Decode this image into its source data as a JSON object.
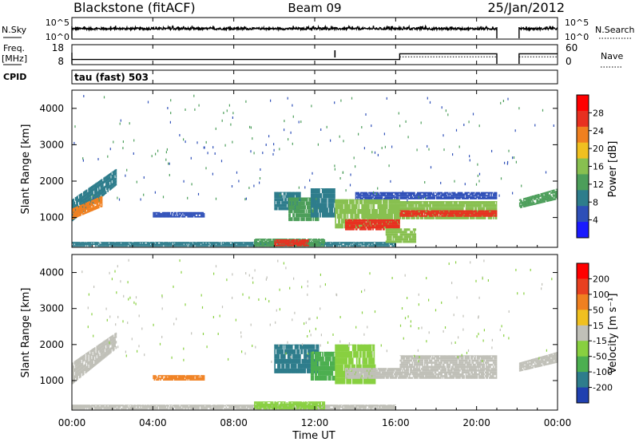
{
  "header": {
    "station": "Blackstone (fitACF)",
    "beam": "Beam 09",
    "date": "25/Jan/2012"
  },
  "noise_panel": {
    "left_label": "N.Sky",
    "right_label": "N.Search",
    "left_ticks": [
      "10^5",
      "10^0"
    ],
    "right_ticks": [
      "10^5",
      "10^0"
    ]
  },
  "freq_panel": {
    "left_label_top": "Freq.",
    "left_label_bottom": "[MHz]",
    "right_label": "Nave",
    "left_ticks": [
      "18",
      "8"
    ],
    "right_ticks": [
      "60",
      "0"
    ]
  },
  "cpid": {
    "label": "CPID",
    "text": "tau (fast) 503"
  },
  "power_panel": {
    "ylabel": "Slant Range [km]",
    "cbar_label": "Power [dB]",
    "y_ticks": [
      "1000",
      "2000",
      "3000",
      "4000"
    ],
    "cbar_ticks": [
      "4",
      "8",
      "12",
      "16",
      "20",
      "24",
      "28"
    ]
  },
  "velocity_panel": {
    "ylabel": "Slant Range [km]",
    "cbar_label": "Velocity [m s⁻¹]",
    "y_ticks": [
      "1000",
      "2000",
      "3000",
      "4000"
    ],
    "cbar_ticks": [
      "200",
      "100",
      "50",
      "15",
      "-15",
      "-50",
      "-100",
      "-200"
    ]
  },
  "time_axis": {
    "xlabel": "Time UT",
    "ticks": [
      "00:00",
      "04:00",
      "08:00",
      "12:00",
      "16:00",
      "20:00",
      "00:00"
    ]
  },
  "colors": {
    "power_scale": [
      "#1a1aff",
      "#2e4fb8",
      "#2e7d8c",
      "#4c9e5a",
      "#88c050",
      "#f0c020",
      "#f08020",
      "#e83020",
      "#ff0000"
    ],
    "velocity_scale": [
      "#2040b0",
      "#2e7d8c",
      "#4caf50",
      "#88d040",
      "#c0c0b8",
      "#f0c020",
      "#f08020",
      "#e84020",
      "#ff0000"
    ],
    "ground_scatter": "#c0c0b8"
  },
  "chart_data": [
    {
      "type": "line",
      "title": "N.Sky / N.Search",
      "xlim": [
        0,
        24
      ],
      "ylim_log10": [
        0,
        5
      ],
      "series": [
        {
          "name": "N.Sky",
          "segments": [
            [
              0,
              21.0
            ],
            [
              22.1,
              24
            ]
          ],
          "level_log10": 2.4
        },
        {
          "name": "N.Search",
          "segments": [
            [
              0,
              21.0
            ],
            [
              22.1,
              24
            ]
          ],
          "level_log10": 2.9
        }
      ]
    },
    {
      "type": "line",
      "title": "Freq. [MHz] / Nave",
      "xlim": [
        0,
        24
      ],
      "series": [
        {
          "name": "Freq.",
          "x": [
            0,
            16.2,
            16.2,
            21.0,
            22.1,
            24
          ],
          "y": [
            11,
            11,
            15,
            15,
            15,
            15
          ],
          "ylim": [
            8,
            18
          ]
        },
        {
          "name": "Nave",
          "x": [
            0,
            16.2,
            16.2,
            21.0,
            22.1,
            24
          ],
          "y": [
            29,
            29,
            24,
            24,
            24,
            24
          ],
          "ylim": [
            0,
            60
          ]
        }
      ]
    },
    {
      "type": "heatmap",
      "name": "Power",
      "xlim": [
        0,
        24
      ],
      "ylim": [
        180,
        4500
      ],
      "units": "dB",
      "color_range": [
        0,
        32
      ],
      "regions": [
        {
          "t0": 0.0,
          "t1": 2.2,
          "r0": 900,
          "r1": 1500,
          "r0_end": 1900,
          "r1_end": 2350,
          "value": 10
        },
        {
          "t0": 0.0,
          "t1": 1.5,
          "r0": 950,
          "r1": 1250,
          "r0_end": 1300,
          "r1_end": 1600,
          "value": 22
        },
        {
          "t0": 4.0,
          "t1": 6.5,
          "r0": 1000,
          "r1": 1150,
          "value": 6
        },
        {
          "t0": 0.0,
          "t1": 16.0,
          "r0": 200,
          "r1": 330,
          "value": 8
        },
        {
          "t0": 9.0,
          "t1": 12.5,
          "r0": 200,
          "r1": 420,
          "value": 14
        },
        {
          "t0": 10.0,
          "t1": 11.7,
          "r0": 210,
          "r1": 400,
          "value": 26
        },
        {
          "t0": 10.0,
          "t1": 11.3,
          "r0": 1200,
          "r1": 1700,
          "value": 9
        },
        {
          "t0": 10.7,
          "t1": 12.2,
          "r0": 900,
          "r1": 1550,
          "value": 12
        },
        {
          "t0": 11.8,
          "t1": 13.0,
          "r0": 1000,
          "r1": 1800,
          "value": 9
        },
        {
          "t0": 13.0,
          "t1": 16.2,
          "r0": 700,
          "r1": 1500,
          "value": 16
        },
        {
          "t0": 13.5,
          "t1": 16.2,
          "r0": 650,
          "r1": 950,
          "value": 27
        },
        {
          "t0": 14.0,
          "t1": 21.0,
          "r0": 1500,
          "r1": 1700,
          "value": 7
        },
        {
          "t0": 15.5,
          "t1": 17.0,
          "r0": 300,
          "r1": 700,
          "value": 16
        },
        {
          "t0": 16.2,
          "t1": 21.0,
          "r0": 950,
          "r1": 1450,
          "value": 15
        },
        {
          "t0": 16.2,
          "t1": 21.0,
          "r0": 1020,
          "r1": 1200,
          "value": 27
        },
        {
          "t0": 22.1,
          "t1": 24.0,
          "r0": 1250,
          "r1": 1500,
          "r0_end": 1500,
          "r1_end": 1800,
          "value": 12
        }
      ]
    },
    {
      "type": "heatmap",
      "name": "Velocity",
      "xlim": [
        0,
        24
      ],
      "ylim": [
        180,
        4500
      ],
      "units": "m s-1",
      "color_range": [
        -200,
        200
      ],
      "ground_scatter": "grey",
      "regions": [
        {
          "t0": 0.0,
          "t1": 2.2,
          "r0": 900,
          "r1": 1500,
          "r0_end": 1900,
          "r1_end": 2350,
          "value": "ground"
        },
        {
          "t0": 4.0,
          "t1": 6.5,
          "r0": 1000,
          "r1": 1150,
          "value": -60
        },
        {
          "t0": 0.0,
          "t1": 16.0,
          "r0": 200,
          "r1": 330,
          "value": "ground"
        },
        {
          "t0": 9.0,
          "t1": 12.5,
          "r0": 200,
          "r1": 420,
          "value": 20
        },
        {
          "t0": 10.0,
          "t1": 12.2,
          "r0": 1200,
          "r1": 2000,
          "value": 150
        },
        {
          "t0": 11.8,
          "t1": 13.0,
          "r0": 1000,
          "r1": 1800,
          "value": 80
        },
        {
          "t0": 13.0,
          "t1": 15.0,
          "r0": 900,
          "r1": 2000,
          "value": 30
        },
        {
          "t0": 13.5,
          "t1": 21.0,
          "r0": 1050,
          "r1": 1350,
          "value": "ground"
        },
        {
          "t0": 16.2,
          "t1": 21.0,
          "r0": 1350,
          "r1": 1700,
          "value": 10
        },
        {
          "t0": 22.1,
          "t1": 24.0,
          "r0": 1250,
          "r1": 1500,
          "r0_end": 1500,
          "r1_end": 1800,
          "value": "ground"
        }
      ]
    }
  ]
}
